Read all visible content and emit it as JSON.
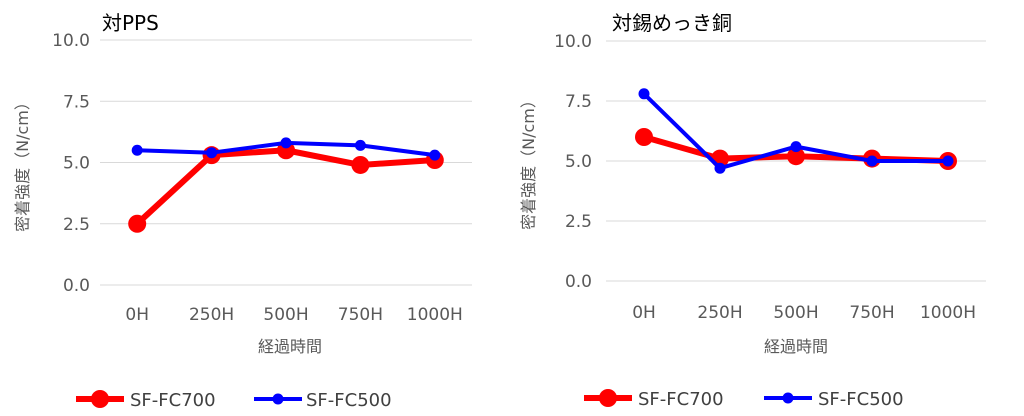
{
  "charts": [
    {
      "title": "対PPS",
      "ylabel": "密着強度（N/cm）",
      "xlabel": "経過時間"
    },
    {
      "title": "対錫めっき銅",
      "ylabel": "密着強度（N/cm）",
      "xlabel": "経過時間"
    }
  ],
  "chart_data": [
    {
      "type": "line",
      "title": "対PPS",
      "xlabel": "経過時間",
      "ylabel": "密着強度（N/cm）",
      "categories": [
        "0H",
        "250H",
        "500H",
        "750H",
        "1000H"
      ],
      "ylim": [
        0,
        10
      ],
      "yticks": [
        "0.0",
        "2.5",
        "5.0",
        "7.5",
        "10.0"
      ],
      "grid": true,
      "legend": "bottom",
      "series": [
        {
          "name": "SF-FC700",
          "color": "#ff0000",
          "values": [
            2.5,
            5.3,
            5.5,
            4.9,
            5.1
          ]
        },
        {
          "name": "SF-FC500",
          "color": "#0000ff",
          "values": [
            5.5,
            5.4,
            5.8,
            5.7,
            5.3
          ]
        }
      ]
    },
    {
      "type": "line",
      "title": "対錫めっき銅",
      "xlabel": "経過時間",
      "ylabel": "密着強度（N/cm）",
      "categories": [
        "0H",
        "250H",
        "500H",
        "750H",
        "1000H"
      ],
      "ylim": [
        0,
        10
      ],
      "yticks": [
        "0.0",
        "2.5",
        "5.0",
        "7.5",
        "10.0"
      ],
      "grid": true,
      "legend": "bottom",
      "series": [
        {
          "name": "SF-FC700",
          "color": "#ff0000",
          "values": [
            6.0,
            5.1,
            5.2,
            5.1,
            5.0
          ]
        },
        {
          "name": "SF-FC500",
          "color": "#0000ff",
          "values": [
            7.8,
            4.7,
            5.6,
            5.0,
            5.0
          ]
        }
      ]
    }
  ]
}
